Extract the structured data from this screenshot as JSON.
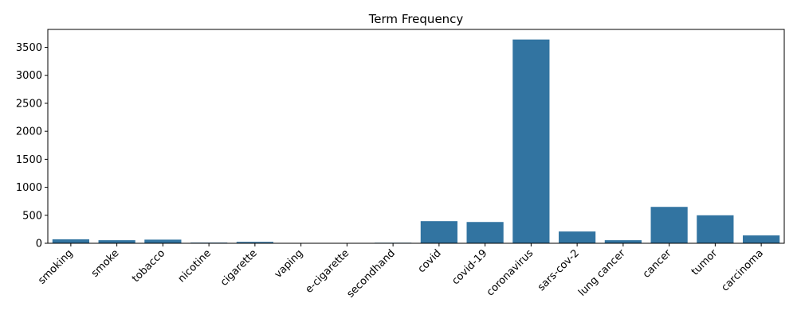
{
  "chart_data": {
    "type": "bar",
    "title": "Term Frequency",
    "xlabel": "",
    "ylabel": "",
    "categories": [
      "smoking",
      "smoke",
      "tobacco",
      "nicotine",
      "cigarette",
      "vaping",
      "e-cigarette",
      "secondhand",
      "covid",
      "covid-19",
      "coronavirus",
      "sars-cov-2",
      "lung cancer",
      "cancer",
      "tumor",
      "carcinoma"
    ],
    "values": [
      70,
      55,
      65,
      12,
      25,
      0,
      0,
      10,
      395,
      380,
      3640,
      210,
      55,
      650,
      500,
      140
    ],
    "ylim": [
      0,
      3820
    ],
    "yticks": [
      0,
      500,
      1000,
      1500,
      2000,
      2500,
      3000,
      3500
    ],
    "bar_color": "#3274a1",
    "grid": false,
    "legend": "none"
  }
}
